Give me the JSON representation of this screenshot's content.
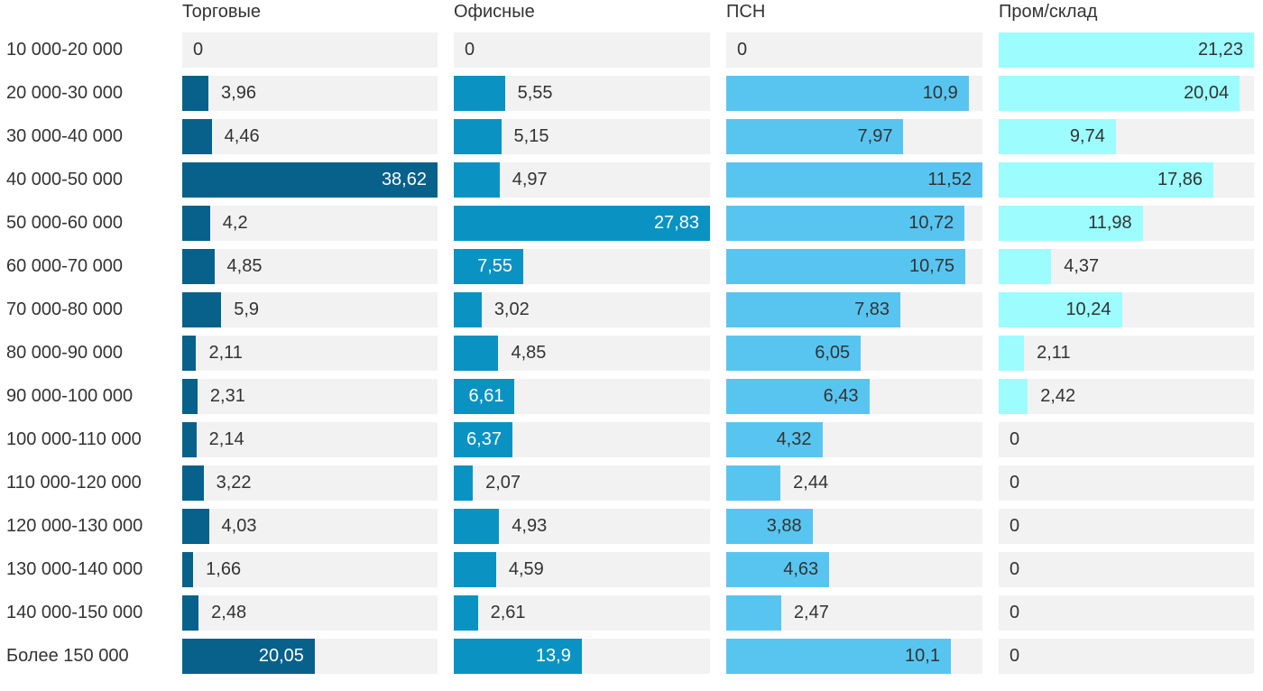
{
  "chart_data": {
    "type": "bar",
    "orientation": "horizontal",
    "title": "",
    "xlabel": "",
    "ylabel": "",
    "value_format": "comma-decimal",
    "grid": false,
    "legend_position": "column-headers",
    "scaling": "each series column normalized to its own max value",
    "track_color": "#f2f2f2",
    "text_color": "#333333",
    "categories": [
      "10 000-20 000",
      "20 000-30 000",
      "30 000-40 000",
      "40 000-50 000",
      "50 000-60 000",
      "60 000-70 000",
      "70 000-80 000",
      "80 000-90 000",
      "90 000-100 000",
      "100 000-110 000",
      "110 000-120 000",
      "120 000-130 000",
      "130 000-140 000",
      "140 000-150 000",
      "Более 150 000"
    ],
    "series": [
      {
        "name": "Торговые",
        "color": "#08618b",
        "inside_label_color": "#ffffff",
        "values": [
          0,
          3.96,
          4.46,
          38.62,
          4.2,
          4.85,
          5.9,
          2.11,
          2.31,
          2.14,
          3.22,
          4.03,
          1.66,
          2.48,
          20.05
        ],
        "labels": [
          "0",
          "3,96",
          "4,46",
          "38,62",
          "4,2",
          "4,85",
          "5,9",
          "2,11",
          "2,31",
          "2,14",
          "3,22",
          "4,03",
          "1,66",
          "2,48",
          "20,05"
        ]
      },
      {
        "name": "Офисные",
        "color": "#0a93c2",
        "inside_label_color": "#ffffff",
        "values": [
          0,
          5.55,
          5.15,
          4.97,
          27.83,
          7.55,
          3.02,
          4.85,
          6.61,
          6.37,
          2.07,
          4.93,
          4.59,
          2.61,
          13.9
        ],
        "labels": [
          "0",
          "5,55",
          "5,15",
          "4,97",
          "27,83",
          "7,55",
          "3,02",
          "4,85",
          "6,61",
          "6,37",
          "2,07",
          "4,93",
          "4,59",
          "2,61",
          "13,9"
        ]
      },
      {
        "name": "ПСН",
        "color": "#58c5f1",
        "inside_label_color": "#333333",
        "values": [
          0,
          10.9,
          7.97,
          11.52,
          10.72,
          10.75,
          7.83,
          6.05,
          6.43,
          4.32,
          2.44,
          3.88,
          4.63,
          2.47,
          10.1
        ],
        "labels": [
          "0",
          "10,9",
          "7,97",
          "11,52",
          "10,72",
          "10,75",
          "7,83",
          "6,05",
          "6,43",
          "4,32",
          "2,44",
          "3,88",
          "4,63",
          "2,47",
          "10,1"
        ]
      },
      {
        "name": "Пром/склад",
        "color": "#9dfcfd",
        "inside_label_color": "#333333",
        "values": [
          21.23,
          20.04,
          9.74,
          17.86,
          11.98,
          4.37,
          10.24,
          2.11,
          2.42,
          0,
          0,
          0,
          0,
          0,
          0
        ],
        "labels": [
          "21,23",
          "20,04",
          "9,74",
          "17,86",
          "11,98",
          "4,37",
          "10,24",
          "2,11",
          "2,42",
          "0",
          "0",
          "0",
          "0",
          "0",
          "0"
        ]
      }
    ]
  }
}
